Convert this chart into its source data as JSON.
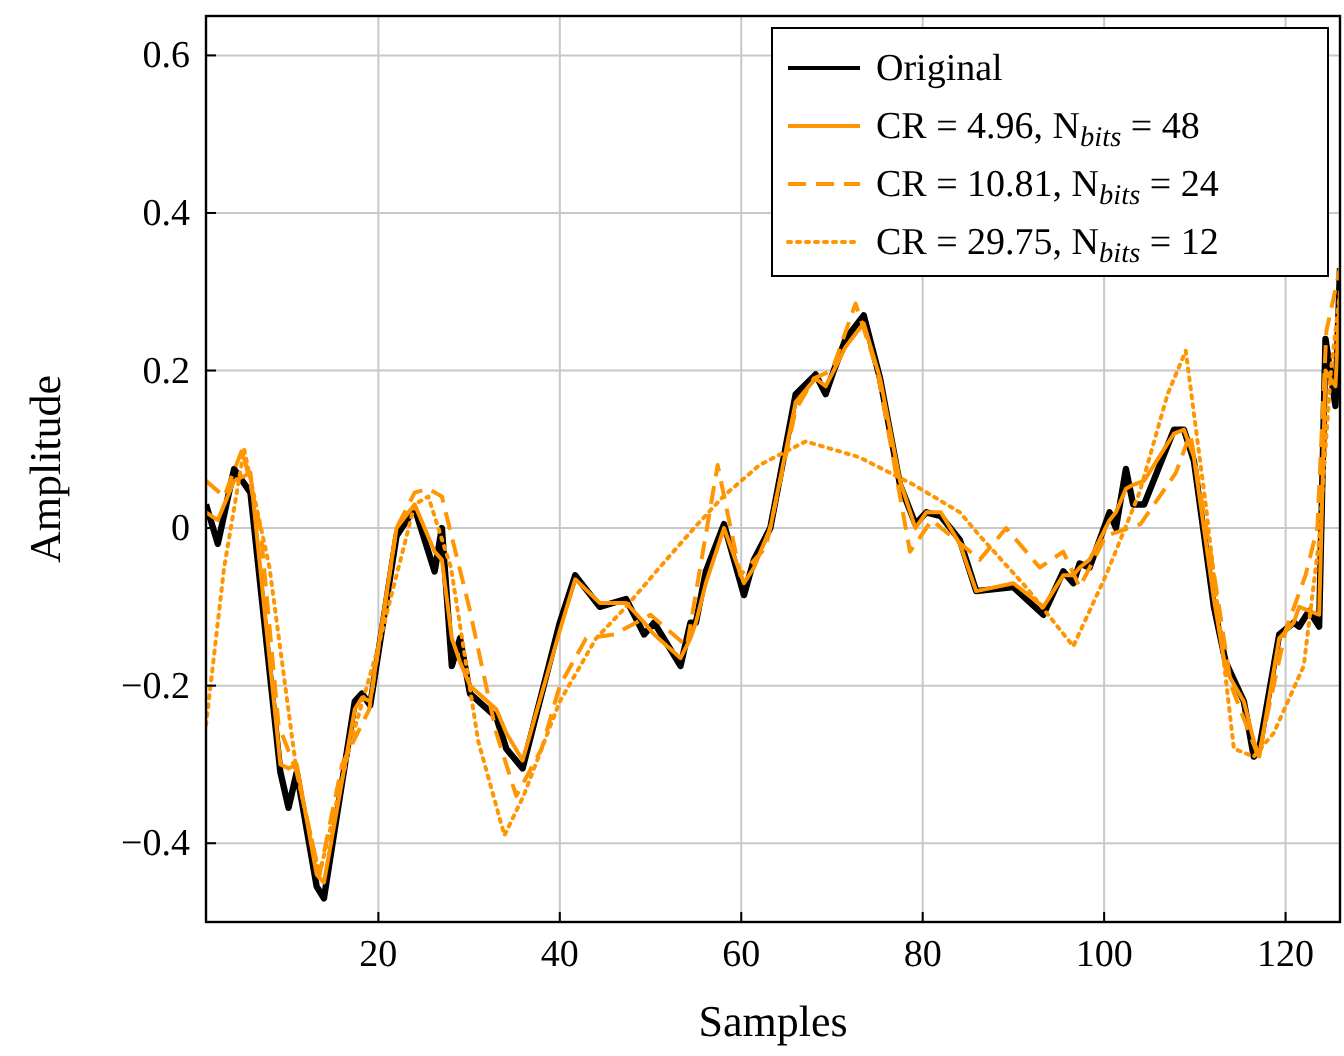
{
  "chart_data": {
    "type": "line",
    "xlabel": "Samples",
    "ylabel": "Amplitude",
    "xlim": [
      1,
      126
    ],
    "ylim": [
      -0.5,
      0.65
    ],
    "xticks": [
      20,
      40,
      60,
      80,
      100,
      120
    ],
    "yticks": [
      -0.4,
      -0.2,
      0,
      0.2,
      0.4,
      0.6
    ],
    "grid": true,
    "legend": "top right",
    "series": [
      {
        "name": "Original",
        "color": "#000000",
        "line_style": "solid",
        "x": [
          1,
          2.3,
          4.1,
          5.9,
          9.2,
          10.1,
          11,
          13.2,
          14,
          17.4,
          18.2,
          19.1,
          22,
          24,
          26.2,
          27,
          28.1,
          29,
          30.1,
          33,
          34.1,
          35.9,
          40,
          41.7,
          44.4,
          47.3,
          49.3,
          50.4,
          53.3,
          54.4,
          55,
          56.1,
          58.1,
          60.3,
          61.4,
          63.2,
          66,
          68.2,
          69.3,
          70.2,
          71.5,
          73.5,
          75.3,
          77.5,
          79.2,
          80.4,
          82,
          84.1,
          85.9,
          90,
          93.3,
          95.5,
          96.6,
          97.3,
          98.4,
          100.6,
          101.3,
          102.4,
          103.2,
          104.4,
          107.7,
          108.8,
          109.9,
          112.1,
          113.4,
          115.4,
          116.5,
          117.1,
          119.3,
          120.9,
          121.5,
          122.6,
          123.7,
          124.4,
          125.5,
          126
        ],
        "values": [
          0.03,
          -0.02,
          0.075,
          0.045,
          -0.31,
          -0.355,
          -0.31,
          -0.455,
          -0.47,
          -0.22,
          -0.21,
          -0.225,
          -0.01,
          0.025,
          -0.055,
          0,
          -0.175,
          -0.14,
          -0.21,
          -0.24,
          -0.28,
          -0.305,
          -0.12,
          -0.06,
          -0.1,
          -0.09,
          -0.135,
          -0.12,
          -0.175,
          -0.12,
          -0.12,
          -0.055,
          0.005,
          -0.085,
          -0.04,
          0,
          0.17,
          0.195,
          0.17,
          0.2,
          0.24,
          0.27,
          0.19,
          0.055,
          0.005,
          0.02,
          0.015,
          -0.015,
          -0.08,
          -0.075,
          -0.11,
          -0.055,
          -0.07,
          -0.045,
          -0.05,
          0.02,
          0,
          0.075,
          0.03,
          0.03,
          0.125,
          0.125,
          0.085,
          -0.1,
          -0.17,
          -0.22,
          -0.29,
          -0.28,
          -0.135,
          -0.12,
          -0.125,
          -0.105,
          -0.125,
          0.24,
          0.155,
          0.33
        ]
      },
      {
        "name": "CR = 4.96, N$_{bits}$ = 48",
        "color": "#ff9500",
        "line_style": "solid",
        "x": [
          1,
          2.3,
          4.1,
          5.9,
          9.2,
          10.1,
          11,
          13.2,
          14,
          17.4,
          18.2,
          19.1,
          22,
          24,
          26.2,
          27,
          28.1,
          29,
          30.1,
          33,
          34.1,
          35.9,
          40,
          41.7,
          44.4,
          47.3,
          49.3,
          50.4,
          53.3,
          54.4,
          55,
          56.1,
          58.1,
          60.3,
          61.4,
          63.2,
          66,
          68.2,
          69.3,
          70.2,
          71.5,
          73.5,
          75.3,
          77.5,
          79.2,
          80.4,
          82,
          84.1,
          85.9,
          90,
          93.3,
          95.5,
          96.6,
          97.3,
          98.4,
          100.6,
          101.3,
          102.4,
          103.2,
          104.4,
          107.7,
          108.8,
          109.9,
          112.1,
          113.4,
          115.4,
          116.5,
          117.1,
          119.3,
          120.9,
          121.5,
          122.6,
          123.7,
          124.4,
          125.5,
          126
        ],
        "values": [
          0.02,
          0.01,
          0.06,
          0.07,
          -0.3,
          -0.305,
          -0.3,
          -0.44,
          -0.45,
          -0.23,
          -0.215,
          -0.22,
          0.0,
          0.03,
          -0.03,
          -0.04,
          -0.14,
          -0.17,
          -0.2,
          -0.23,
          -0.26,
          -0.295,
          -0.13,
          -0.065,
          -0.095,
          -0.095,
          -0.12,
          -0.135,
          -0.165,
          -0.14,
          -0.12,
          -0.07,
          0.0,
          -0.07,
          -0.05,
          0.0,
          0.16,
          0.19,
          0.18,
          0.2,
          0.23,
          0.26,
          0.19,
          0.06,
          0.0,
          0.02,
          0.02,
          -0.02,
          -0.08,
          -0.07,
          -0.1,
          -0.06,
          -0.06,
          -0.05,
          -0.04,
          0.01,
          0.02,
          0.05,
          0.055,
          0.06,
          0.12,
          0.125,
          0.09,
          -0.09,
          -0.18,
          -0.22,
          -0.27,
          -0.29,
          -0.14,
          -0.12,
          -0.1,
          -0.105,
          -0.11,
          0.2,
          0.18,
          0.3
        ]
      },
      {
        "name": "CR = 10.81, N$_{bits}$ = 24",
        "color": "#ff9500",
        "line_style": "dashed",
        "x": [
          1,
          3,
          5,
          7,
          9,
          11,
          13.5,
          16,
          19,
          22,
          24,
          25.5,
          27,
          30,
          33,
          35.2,
          38,
          40,
          42.9,
          46,
          50,
          54,
          57.4,
          59.9,
          62.7,
          66,
          68,
          70,
          72.6,
          75,
          78.6,
          81,
          86.3,
          89.2,
          92.9,
          95.5,
          97.3,
          100.2,
          104,
          107.9,
          109.5,
          112,
          114,
          117,
          120,
          122.2,
          123.5,
          124.5,
          126
        ],
        "values": [
          0.06,
          0.04,
          0.1,
          0.0,
          -0.25,
          -0.31,
          -0.44,
          -0.3,
          -0.23,
          0.0,
          0.045,
          0.05,
          0.04,
          -0.1,
          -0.26,
          -0.34,
          -0.28,
          -0.2,
          -0.14,
          -0.135,
          -0.11,
          -0.15,
          0.08,
          -0.06,
          -0.025,
          0.15,
          0.19,
          0.2,
          0.285,
          0.2,
          -0.03,
          0.01,
          -0.04,
          0.0,
          -0.05,
          -0.03,
          -0.075,
          -0.01,
          0.005,
          0.07,
          0.12,
          -0.05,
          -0.2,
          -0.29,
          -0.13,
          -0.06,
          0.0,
          0.25,
          0.33
        ]
      },
      {
        "name": "CR = 29.75, N$_{bits}$ = 12",
        "color": "#ff9500",
        "line_style": "dotted",
        "x": [
          1,
          3,
          5.2,
          8,
          11,
          13.5,
          17,
          20,
          24,
          25.5,
          28,
          31,
          33.9,
          36,
          40,
          44,
          47.3,
          51,
          54.8,
          58,
          62,
          67.1,
          73,
          79,
          84.1,
          86.3,
          91.4,
          96.6,
          100.2,
          103.9,
          107,
          109,
          111.2,
          114.3,
          116.5,
          118.7,
          122,
          123.7,
          125,
          126
        ],
        "values": [
          -0.25,
          -0.05,
          0.1,
          -0.05,
          -0.31,
          -0.44,
          -0.27,
          -0.15,
          0.03,
          0.04,
          -0.05,
          -0.27,
          -0.39,
          -0.34,
          -0.22,
          -0.14,
          -0.1,
          -0.05,
          0.0,
          0.04,
          0.08,
          0.11,
          0.09,
          0.055,
          0.02,
          -0.01,
          -0.075,
          -0.15,
          -0.06,
          0.045,
          0.17,
          0.225,
          0.03,
          -0.28,
          -0.29,
          -0.26,
          -0.175,
          -0.015,
          0.2,
          0.3
        ]
      }
    ]
  }
}
